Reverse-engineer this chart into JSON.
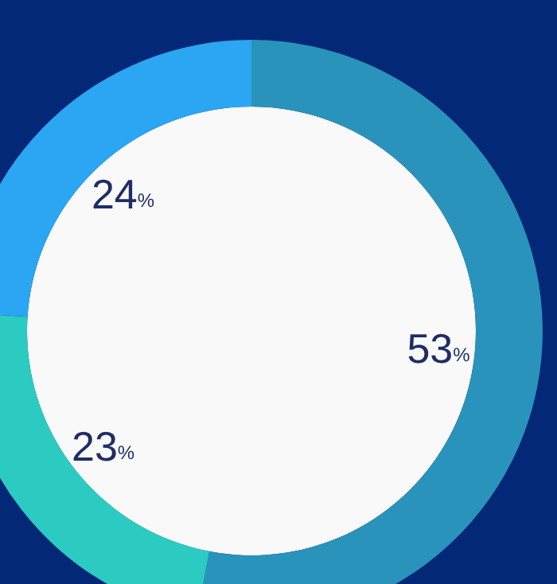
{
  "chart_data": {
    "type": "donut",
    "categories": [
      null,
      null,
      null
    ],
    "values": [
      53,
      23,
      24
    ],
    "colors": [
      "#2a93bb",
      "#2ccbc2",
      "#2aa6f2"
    ],
    "value_labels": [
      "53%",
      "23%",
      "24%"
    ]
  }
}
